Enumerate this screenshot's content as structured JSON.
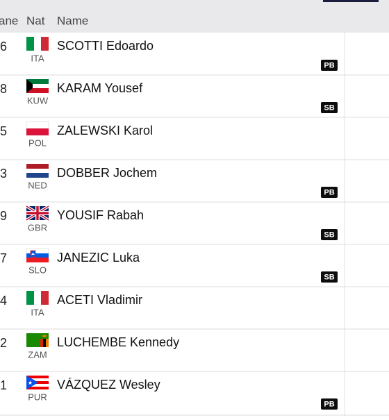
{
  "header": [
    "ane",
    "Nat",
    "Name"
  ],
  "rows": [
    {
      "lane": 6,
      "nat": "ITA",
      "name": "SCOTTI Edoardo",
      "badge": "PB"
    },
    {
      "lane": 8,
      "nat": "KUW",
      "name": "KARAM Yousef",
      "badge": "SB"
    },
    {
      "lane": 5,
      "nat": "POL",
      "name": "ZALEWSKI Karol"
    },
    {
      "lane": 3,
      "nat": "NED",
      "name": "DOBBER Jochem",
      "badge": "PB"
    },
    {
      "lane": 9,
      "nat": "GBR",
      "name": "YOUSIF Rabah",
      "badge": "SB"
    },
    {
      "lane": 7,
      "nat": "SLO",
      "name": "JANEZIC Luka",
      "badge": "SB"
    },
    {
      "lane": 4,
      "nat": "ITA",
      "name": "ACETI Vladimir"
    },
    {
      "lane": 2,
      "nat": "ZAM",
      "name": "LUCHEMBE Kennedy"
    },
    {
      "lane": 1,
      "nat": "PUR",
      "name": "VÁZQUEZ Wesley",
      "badge": "PB"
    }
  ]
}
